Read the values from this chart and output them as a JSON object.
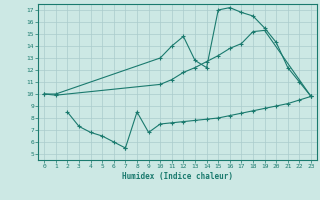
{
  "xlabel": "Humidex (Indice chaleur)",
  "bg_color": "#cce8e4",
  "grid_color": "#aacccc",
  "line_color": "#1a7a6e",
  "xlim": [
    -0.5,
    23.5
  ],
  "ylim": [
    4.5,
    17.5
  ],
  "xticks": [
    0,
    1,
    2,
    3,
    4,
    5,
    6,
    7,
    8,
    9,
    10,
    11,
    12,
    13,
    14,
    15,
    16,
    17,
    18,
    19,
    20,
    21,
    22,
    23
  ],
  "yticks": [
    5,
    6,
    7,
    8,
    9,
    10,
    11,
    12,
    13,
    14,
    15,
    16,
    17
  ],
  "line1_x": [
    0,
    1,
    10,
    11,
    12,
    13,
    14,
    15,
    16,
    17,
    18,
    19,
    20,
    21,
    22,
    23
  ],
  "line1_y": [
    10.0,
    10.0,
    13.0,
    14.0,
    14.8,
    12.8,
    12.2,
    17.0,
    17.2,
    16.8,
    16.5,
    15.5,
    14.3,
    12.2,
    11.0,
    9.8
  ],
  "line2_x": [
    0,
    1,
    10,
    11,
    12,
    13,
    14,
    15,
    16,
    17,
    18,
    19,
    23
  ],
  "line2_y": [
    10.0,
    9.9,
    10.8,
    11.2,
    11.8,
    12.2,
    12.7,
    13.2,
    13.8,
    14.2,
    15.2,
    15.3,
    9.8
  ],
  "line3a_x": [
    2,
    3,
    4,
    5,
    6,
    7
  ],
  "line3a_y": [
    8.5,
    7.3,
    6.8,
    6.5,
    6.0,
    5.5
  ],
  "line3b_x": [
    7,
    8,
    9,
    10,
    11,
    12,
    13,
    14,
    15,
    16,
    17,
    18,
    19,
    20,
    21,
    22,
    23
  ],
  "line3b_y": [
    5.5,
    8.5,
    6.8,
    7.5,
    7.6,
    7.7,
    7.8,
    7.9,
    8.0,
    8.2,
    8.4,
    8.6,
    8.8,
    9.0,
    9.2,
    9.5,
    9.8
  ]
}
